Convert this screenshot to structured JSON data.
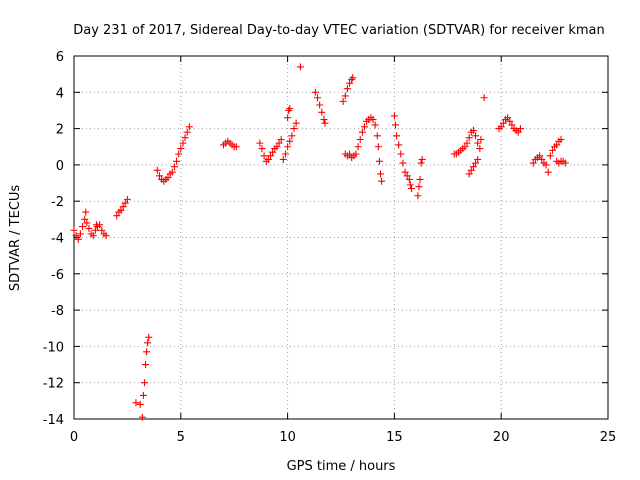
{
  "chart_data": {
    "type": "scatter",
    "title": "Day 231 of 2017, Sidereal Day-to-day VTEC variation (SDTVAR) for receiver kman",
    "xlabel": "GPS time / hours",
    "ylabel": "SDTVAR / TECUs",
    "xlim": [
      0,
      25
    ],
    "ylim": [
      -14,
      6
    ],
    "xticks": [
      0,
      5,
      10,
      15,
      20,
      25
    ],
    "yticks": [
      -14,
      -12,
      -10,
      -8,
      -6,
      -4,
      -2,
      0,
      2,
      4,
      6
    ],
    "grid": true,
    "marker": "plus",
    "color": "#ff0000",
    "segments": [
      {
        "name": "seg-01",
        "points": [
          [
            0.0,
            -3.6
          ],
          [
            0.1,
            -3.9
          ],
          [
            0.2,
            -4.1
          ],
          [
            0.3,
            -3.8
          ],
          [
            0.4,
            -3.4
          ],
          [
            0.5,
            -3.0
          ],
          [
            0.55,
            -2.6
          ],
          [
            0.6,
            -3.2
          ],
          [
            0.7,
            -3.5
          ],
          [
            0.8,
            -3.8
          ],
          [
            0.9,
            -3.9
          ],
          [
            1.0,
            -3.6
          ],
          [
            1.05,
            -3.3
          ],
          [
            1.1,
            -3.4
          ],
          [
            1.2,
            -3.3
          ],
          [
            1.3,
            -3.6
          ],
          [
            1.4,
            -3.8
          ],
          [
            1.5,
            -3.9
          ]
        ]
      },
      {
        "name": "seg-02",
        "points": [
          [
            2.0,
            -2.8
          ],
          [
            2.1,
            -2.6
          ],
          [
            2.2,
            -2.5
          ],
          [
            2.3,
            -2.3
          ],
          [
            2.4,
            -2.1
          ],
          [
            2.5,
            -1.9
          ]
        ]
      },
      {
        "name": "seg-03",
        "points": [
          [
            2.9,
            -13.1
          ],
          [
            3.1,
            -13.2
          ],
          [
            3.2,
            -13.9
          ],
          [
            3.25,
            -12.7
          ],
          [
            3.3,
            -12.0
          ],
          [
            3.35,
            -11.0
          ],
          [
            3.4,
            -10.3
          ],
          [
            3.45,
            -9.8
          ],
          [
            3.5,
            -9.5
          ]
        ]
      },
      {
        "name": "seg-04",
        "points": [
          [
            3.9,
            -0.3
          ],
          [
            4.0,
            -0.6
          ],
          [
            4.1,
            -0.8
          ],
          [
            4.2,
            -0.9
          ],
          [
            4.3,
            -0.8
          ],
          [
            4.4,
            -0.7
          ],
          [
            4.5,
            -0.5
          ],
          [
            4.6,
            -0.4
          ],
          [
            4.7,
            -0.1
          ],
          [
            4.8,
            0.2
          ],
          [
            4.9,
            0.6
          ],
          [
            5.0,
            0.9
          ],
          [
            5.1,
            1.2
          ],
          [
            5.2,
            1.5
          ],
          [
            5.3,
            1.8
          ],
          [
            5.4,
            2.1
          ]
        ]
      },
      {
        "name": "seg-05",
        "points": [
          [
            7.0,
            1.1
          ],
          [
            7.1,
            1.2
          ],
          [
            7.2,
            1.3
          ],
          [
            7.3,
            1.2
          ],
          [
            7.4,
            1.1
          ],
          [
            7.5,
            1.0
          ],
          [
            7.6,
            1.0
          ]
        ]
      },
      {
        "name": "seg-06",
        "points": [
          [
            8.7,
            1.2
          ],
          [
            8.8,
            0.9
          ],
          [
            8.9,
            0.5
          ],
          [
            9.0,
            0.2
          ],
          [
            9.1,
            0.3
          ],
          [
            9.2,
            0.5
          ],
          [
            9.3,
            0.7
          ],
          [
            9.4,
            0.9
          ],
          [
            9.5,
            1.0
          ],
          [
            9.6,
            1.2
          ],
          [
            9.7,
            1.4
          ]
        ]
      },
      {
        "name": "seg-07",
        "points": [
          [
            9.8,
            0.3
          ],
          [
            9.9,
            0.6
          ],
          [
            10.0,
            1.0
          ],
          [
            10.1,
            1.3
          ],
          [
            10.2,
            1.6
          ],
          [
            10.3,
            2.0
          ],
          [
            10.4,
            2.3
          ]
        ]
      },
      {
        "name": "seg-08",
        "points": [
          [
            10.0,
            2.6
          ],
          [
            10.05,
            3.0
          ],
          [
            10.1,
            3.1
          ]
        ]
      },
      {
        "name": "seg-09",
        "points": [
          [
            10.6,
            5.4
          ]
        ]
      },
      {
        "name": "seg-10",
        "points": [
          [
            11.3,
            4.0
          ],
          [
            11.4,
            3.7
          ],
          [
            11.5,
            3.3
          ],
          [
            11.6,
            2.9
          ],
          [
            11.7,
            2.5
          ],
          [
            11.75,
            2.3
          ]
        ]
      },
      {
        "name": "seg-11",
        "points": [
          [
            12.6,
            3.5
          ],
          [
            12.7,
            3.8
          ],
          [
            12.8,
            4.2
          ],
          [
            12.9,
            4.5
          ],
          [
            13.0,
            4.7
          ],
          [
            13.05,
            4.8
          ]
        ]
      },
      {
        "name": "seg-12",
        "points": [
          [
            12.7,
            0.6
          ],
          [
            12.8,
            0.5
          ],
          [
            12.9,
            0.6
          ],
          [
            13.0,
            0.4
          ],
          [
            13.1,
            0.5
          ],
          [
            13.2,
            0.6
          ],
          [
            13.3,
            1.0
          ],
          [
            13.4,
            1.4
          ],
          [
            13.5,
            1.8
          ],
          [
            13.6,
            2.1
          ],
          [
            13.7,
            2.4
          ],
          [
            13.8,
            2.5
          ],
          [
            13.9,
            2.6
          ],
          [
            14.0,
            2.5
          ],
          [
            14.1,
            2.2
          ],
          [
            14.2,
            1.6
          ],
          [
            14.25,
            1.0
          ],
          [
            14.3,
            0.2
          ],
          [
            14.35,
            -0.5
          ],
          [
            14.4,
            -0.9
          ]
        ]
      },
      {
        "name": "seg-13",
        "points": [
          [
            15.0,
            2.7
          ],
          [
            15.05,
            2.2
          ],
          [
            15.1,
            1.6
          ],
          [
            15.2,
            1.1
          ],
          [
            15.3,
            0.6
          ],
          [
            15.4,
            0.1
          ],
          [
            15.5,
            -0.4
          ],
          [
            15.6,
            -0.6
          ],
          [
            15.7,
            -0.8
          ],
          [
            15.75,
            -1.1
          ],
          [
            15.8,
            -1.3
          ]
        ]
      },
      {
        "name": "seg-14",
        "points": [
          [
            16.1,
            -1.7
          ],
          [
            16.15,
            -1.2
          ],
          [
            16.2,
            -0.8
          ],
          [
            16.25,
            0.1
          ],
          [
            16.3,
            0.3
          ]
        ]
      },
      {
        "name": "seg-15",
        "points": [
          [
            17.8,
            0.6
          ],
          [
            17.9,
            0.6
          ],
          [
            18.0,
            0.7
          ],
          [
            18.1,
            0.8
          ],
          [
            18.2,
            0.9
          ],
          [
            18.3,
            1.0
          ],
          [
            18.4,
            1.2
          ],
          [
            18.5,
            1.5
          ],
          [
            18.6,
            1.8
          ],
          [
            18.7,
            1.9
          ]
        ]
      },
      {
        "name": "seg-16",
        "points": [
          [
            18.5,
            -0.5
          ],
          [
            18.6,
            -0.3
          ],
          [
            18.7,
            -0.1
          ],
          [
            18.8,
            0.1
          ],
          [
            18.9,
            0.3
          ]
        ]
      },
      {
        "name": "seg-17",
        "points": [
          [
            18.8,
            1.6
          ],
          [
            18.9,
            1.2
          ],
          [
            19.0,
            0.9
          ],
          [
            19.05,
            1.4
          ]
        ]
      },
      {
        "name": "seg-18",
        "points": [
          [
            19.2,
            3.7
          ]
        ]
      },
      {
        "name": "seg-19",
        "points": [
          [
            19.9,
            2.0
          ],
          [
            20.0,
            2.1
          ],
          [
            20.1,
            2.3
          ],
          [
            20.2,
            2.5
          ],
          [
            20.3,
            2.6
          ],
          [
            20.4,
            2.4
          ],
          [
            20.5,
            2.2
          ],
          [
            20.6,
            2.0
          ],
          [
            20.7,
            1.9
          ],
          [
            20.8,
            1.8
          ],
          [
            20.9,
            2.0
          ]
        ]
      },
      {
        "name": "seg-20",
        "points": [
          [
            21.5,
            0.1
          ],
          [
            21.6,
            0.3
          ],
          [
            21.7,
            0.4
          ],
          [
            21.8,
            0.5
          ],
          [
            21.9,
            0.3
          ],
          [
            22.0,
            0.1
          ],
          [
            22.1,
            0.0
          ]
        ]
      },
      {
        "name": "seg-21",
        "points": [
          [
            22.2,
            -0.4
          ],
          [
            22.3,
            0.5
          ],
          [
            22.4,
            0.8
          ],
          [
            22.5,
            1.0
          ],
          [
            22.6,
            1.1
          ],
          [
            22.7,
            1.3
          ],
          [
            22.8,
            1.4
          ]
        ]
      },
      {
        "name": "seg-22",
        "points": [
          [
            22.6,
            0.2
          ],
          [
            22.7,
            0.1
          ],
          [
            22.8,
            0.2
          ],
          [
            22.9,
            0.2
          ],
          [
            23.0,
            0.1
          ]
        ]
      }
    ]
  }
}
